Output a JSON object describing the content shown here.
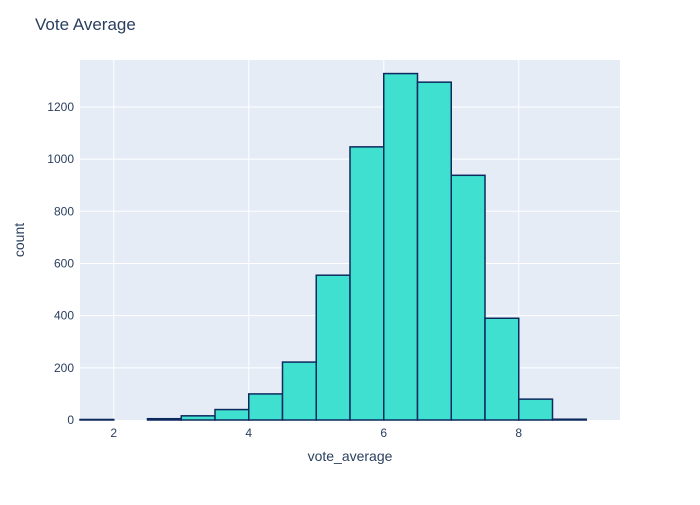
{
  "chart_data": {
    "type": "bar",
    "title": "Vote Average",
    "xlabel": "vote_average",
    "ylabel": "count",
    "xlim": [
      1.5,
      9.5
    ],
    "ylim": [
      0,
      1380
    ],
    "x_ticks": [
      2,
      4,
      6,
      8
    ],
    "y_ticks": [
      0,
      200,
      400,
      600,
      800,
      1000,
      1200
    ],
    "grid": true,
    "bin_width": 0.5,
    "bins": [
      {
        "start": 1.5,
        "end": 2.0,
        "count": 2
      },
      {
        "start": 2.0,
        "end": 2.5,
        "count": 0
      },
      {
        "start": 2.5,
        "end": 3.0,
        "count": 5
      },
      {
        "start": 3.0,
        "end": 3.5,
        "count": 16
      },
      {
        "start": 3.5,
        "end": 4.0,
        "count": 40
      },
      {
        "start": 4.0,
        "end": 4.5,
        "count": 100
      },
      {
        "start": 4.5,
        "end": 5.0,
        "count": 222
      },
      {
        "start": 5.0,
        "end": 5.5,
        "count": 555
      },
      {
        "start": 5.5,
        "end": 6.0,
        "count": 1047
      },
      {
        "start": 6.0,
        "end": 6.5,
        "count": 1328
      },
      {
        "start": 6.5,
        "end": 7.0,
        "count": 1295
      },
      {
        "start": 7.0,
        "end": 7.5,
        "count": 938
      },
      {
        "start": 7.5,
        "end": 8.0,
        "count": 390
      },
      {
        "start": 8.0,
        "end": 8.5,
        "count": 80
      },
      {
        "start": 8.5,
        "end": 9.0,
        "count": 3
      },
      {
        "start": 9.0,
        "end": 9.5,
        "count": 0
      }
    ],
    "colors": {
      "bar_fill": "#40e0d0",
      "bar_stroke": "#0d2a5e",
      "plot_bg": "#e5ecf6",
      "grid": "#ffffff",
      "text": "#2a3f5f"
    }
  }
}
